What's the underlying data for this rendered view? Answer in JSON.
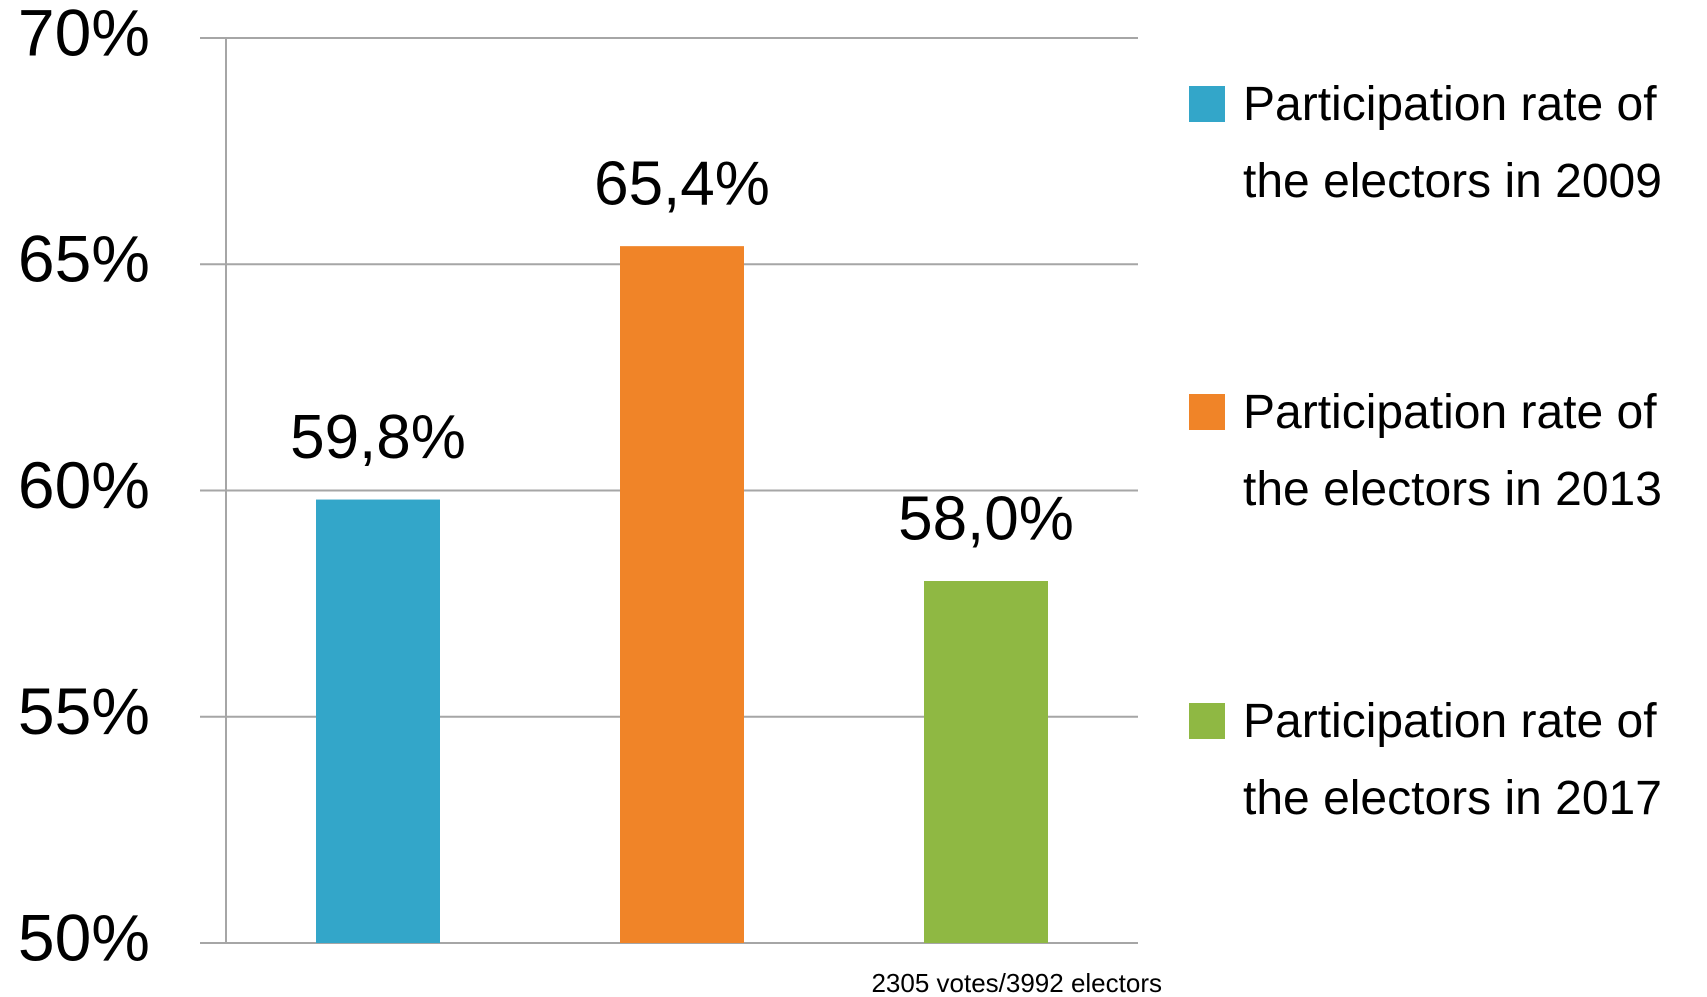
{
  "chart_data": {
    "type": "bar",
    "series": [
      {
        "name": "Participation rate of the electors in 2009",
        "color": "#33a6c9",
        "values": [
          59.8
        ],
        "value_labels": [
          "59,8%"
        ]
      },
      {
        "name": "Participation rate of the electors in 2013",
        "color": "#f08428",
        "values": [
          65.4
        ],
        "value_labels": [
          "65,4%"
        ]
      },
      {
        "name": "Participation rate of the electors in 2017",
        "color": "#8fb843",
        "values": [
          58.0
        ],
        "value_labels": [
          "58,0%"
        ]
      }
    ],
    "ylim": [
      50,
      70
    ],
    "yticks": [
      {
        "value": 50,
        "label": "50%"
      },
      {
        "value": 55,
        "label": "55%"
      },
      {
        "value": 60,
        "label": "60%"
      },
      {
        "value": 65,
        "label": "65%"
      },
      {
        "value": 70,
        "label": "70%"
      }
    ],
    "grid": true,
    "legend": "right",
    "annotation": "2305 votes/3992 electors"
  }
}
